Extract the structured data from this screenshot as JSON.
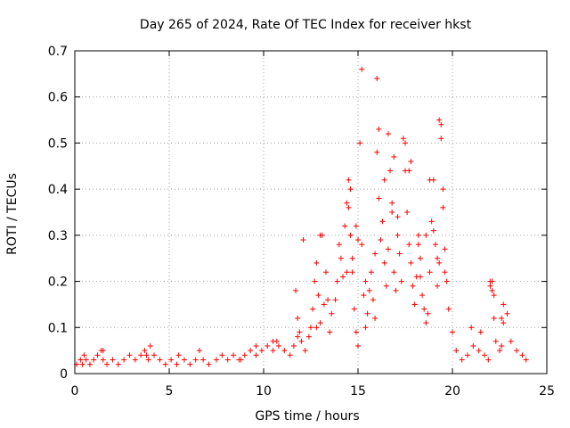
{
  "chart_data": {
    "type": "scatter",
    "title": "Day 265 of 2024, Rate Of TEC Index for receiver hkst",
    "xlabel": "GPS time / hours",
    "ylabel": "ROTI / TECUs",
    "xlim": [
      0,
      25
    ],
    "ylim": [
      0,
      0.7
    ],
    "xticks": [
      0,
      5,
      10,
      15,
      20,
      25
    ],
    "yticks": [
      0,
      0.1,
      0.2,
      0.3,
      0.4,
      0.5,
      0.6,
      0.7
    ],
    "xtick_labels": [
      "0",
      "5",
      "10",
      "15",
      "20",
      "25"
    ],
    "ytick_labels": [
      "0",
      "0.1",
      "0.2",
      "0.3",
      "0.4",
      "0.5",
      "0.6",
      "0.7"
    ],
    "grid": true,
    "marker": "+",
    "color": "#ff0000",
    "series": [
      {
        "name": "ROTI",
        "x": [
          0.1,
          0.3,
          0.5,
          0.6,
          0.8,
          1.0,
          1.2,
          1.4,
          1.5,
          1.7,
          2.0,
          2.3,
          2.6,
          2.9,
          3.2,
          3.5,
          3.7,
          3.9,
          4.2,
          4.5,
          4.8,
          5.1,
          5.4,
          5.8,
          6.1,
          6.4,
          6.8,
          7.1,
          7.5,
          7.8,
          8.1,
          8.4,
          8.7,
          9.0,
          9.3,
          9.6,
          9.9,
          10.2,
          10.5,
          10.8,
          11.1,
          11.4,
          11.6,
          11.7,
          11.8,
          11.9,
          12.0,
          12.2,
          12.4,
          12.5,
          12.6,
          12.7,
          12.8,
          12.9,
          13.0,
          13.1,
          13.2,
          13.3,
          13.5,
          13.6,
          13.8,
          13.9,
          14.0,
          14.1,
          14.2,
          14.3,
          14.4,
          14.5,
          14.6,
          14.7,
          14.8,
          14.9,
          15.0,
          15.1,
          15.2,
          15.3,
          15.4,
          15.5,
          15.6,
          15.7,
          15.8,
          15.9,
          16.0,
          16.1,
          16.2,
          16.3,
          16.4,
          16.5,
          16.6,
          16.7,
          16.8,
          16.9,
          17.0,
          17.1,
          17.2,
          17.3,
          17.4,
          17.5,
          17.6,
          17.7,
          17.8,
          17.9,
          18.0,
          18.1,
          18.2,
          18.3,
          18.4,
          18.5,
          18.6,
          18.7,
          18.8,
          18.9,
          19.0,
          19.1,
          19.2,
          19.3,
          19.4,
          19.5,
          19.6,
          19.7,
          19.8,
          20.0,
          20.2,
          20.5,
          20.8,
          21.1,
          21.4,
          21.7,
          21.9,
          22.0,
          22.1,
          22.2,
          22.3,
          22.5,
          22.6,
          22.7,
          22.9,
          23.1,
          23.4,
          23.7,
          23.9,
          0.4,
          1.5,
          3.8,
          4.0,
          5.5,
          6.6,
          8.8,
          9.6,
          10.5,
          10.7,
          11.8,
          12.1,
          12.8,
          13.0,
          13.4,
          14.4,
          14.5,
          14.6,
          14.7,
          14.9,
          15.0,
          15.2,
          15.4,
          15.9,
          16.0,
          16.1,
          16.4,
          16.6,
          16.8,
          16.9,
          17.1,
          17.5,
          17.7,
          17.8,
          18.2,
          18.3,
          18.6,
          18.8,
          19.0,
          19.2,
          19.3,
          19.4,
          19.5,
          19.6,
          21.0,
          21.5,
          22.0,
          22.1,
          22.2,
          22.6,
          22.7
        ],
        "y": [
          0.02,
          0.03,
          0.04,
          0.03,
          0.02,
          0.03,
          0.04,
          0.05,
          0.03,
          0.02,
          0.03,
          0.02,
          0.03,
          0.04,
          0.03,
          0.04,
          0.05,
          0.03,
          0.04,
          0.03,
          0.02,
          0.03,
          0.02,
          0.03,
          0.02,
          0.03,
          0.03,
          0.02,
          0.03,
          0.04,
          0.03,
          0.04,
          0.03,
          0.04,
          0.05,
          0.04,
          0.05,
          0.06,
          0.05,
          0.06,
          0.05,
          0.04,
          0.06,
          0.18,
          0.12,
          0.09,
          0.07,
          0.05,
          0.08,
          0.1,
          0.14,
          0.2,
          0.24,
          0.17,
          0.11,
          0.3,
          0.15,
          0.22,
          0.09,
          0.13,
          0.16,
          0.2,
          0.28,
          0.25,
          0.21,
          0.32,
          0.37,
          0.42,
          0.3,
          0.22,
          0.14,
          0.09,
          0.06,
          0.5,
          0.28,
          0.17,
          0.1,
          0.13,
          0.18,
          0.22,
          0.16,
          0.12,
          0.48,
          0.38,
          0.29,
          0.33,
          0.24,
          0.19,
          0.27,
          0.44,
          0.35,
          0.22,
          0.18,
          0.3,
          0.26,
          0.2,
          0.51,
          0.44,
          0.35,
          0.28,
          0.24,
          0.19,
          0.15,
          0.21,
          0.3,
          0.25,
          0.17,
          0.14,
          0.11,
          0.13,
          0.22,
          0.33,
          0.42,
          0.28,
          0.19,
          0.24,
          0.54,
          0.36,
          0.27,
          0.2,
          0.14,
          0.09,
          0.05,
          0.03,
          0.04,
          0.06,
          0.05,
          0.04,
          0.03,
          0.2,
          0.18,
          0.12,
          0.07,
          0.05,
          0.06,
          0.15,
          0.13,
          0.07,
          0.05,
          0.04,
          0.03,
          0.02,
          0.05,
          0.04,
          0.06,
          0.04,
          0.05,
          0.03,
          0.06,
          0.07,
          0.07,
          0.08,
          0.29,
          0.1,
          0.3,
          0.16,
          0.22,
          0.36,
          0.4,
          0.25,
          0.32,
          0.29,
          0.66,
          0.2,
          0.26,
          0.64,
          0.53,
          0.42,
          0.52,
          0.37,
          0.47,
          0.34,
          0.5,
          0.44,
          0.46,
          0.28,
          0.21,
          0.3,
          0.42,
          0.31,
          0.25,
          0.55,
          0.51,
          0.4,
          0.22,
          0.1,
          0.09,
          0.19,
          0.2,
          0.17,
          0.12,
          0.11
        ]
      }
    ]
  }
}
